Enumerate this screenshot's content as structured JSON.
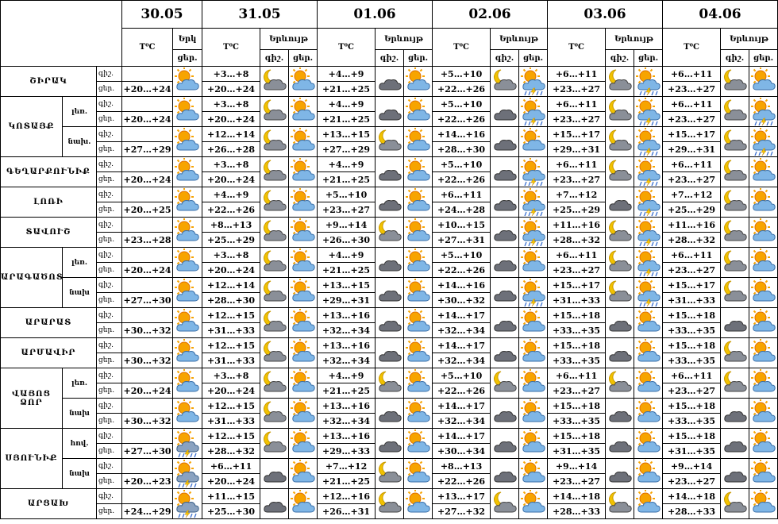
{
  "header": {
    "dates": [
      "30.05",
      "31.05",
      "01.06",
      "02.06",
      "03.06",
      "04.06"
    ],
    "temp_label": "T⁰C",
    "phenomenon_first": "Երկ",
    "phenomenon": "Երևույթ",
    "night": "գիշ.",
    "day": "ցեր."
  },
  "regions": [
    {
      "name": "ՇԻՐԱԿ",
      "parts": [
        {
          "night": [
            "+3…+8",
            "+4…+9",
            "+5…+10",
            "+6…+11",
            "+6…+11"
          ],
          "day": [
            "+20…+24",
            "+20…+24",
            "+21…+25",
            "+22…+26",
            "+23…+27",
            "+23…+27"
          ]
        }
      ]
    },
    {
      "name": "ԿՈՏԱՅՔ",
      "parts": [
        {
          "sub": "լեռ.",
          "night": [
            "+3…+8",
            "+4…+9",
            "+5…+10",
            "+6…+11",
            "+6…+11"
          ],
          "day": [
            "+20…+24",
            "+20…+24",
            "+21…+25",
            "+22…+26",
            "+23…+27",
            "+23…+27"
          ]
        },
        {
          "sub": "նախ.",
          "night": [
            "+12…+14",
            "+13…+15",
            "+14…+16",
            "+15…+17",
            "+15…+17"
          ],
          "day": [
            "+27…+29",
            "+26…+28",
            "+27…+29",
            "+28…+30",
            "+29…+31",
            "+29…+31"
          ]
        }
      ]
    },
    {
      "name": "ԳԵՂԱՐՔՈՒՆԻՔ",
      "parts": [
        {
          "night": [
            "+3…+8",
            "+4…+9",
            "+5…+10",
            "+6…+11",
            "+6…+11"
          ],
          "day": [
            "+20…+24",
            "+20…+24",
            "+21…+25",
            "+22…+26",
            "+23…+27",
            "+23…+27"
          ]
        }
      ]
    },
    {
      "name": "ԼՈՌԻ",
      "parts": [
        {
          "night": [
            "+4…+9",
            "+5…+10",
            "+6…+11",
            "+7…+12",
            "+7…+12"
          ],
          "day": [
            "+20…+25",
            "+22…+26",
            "+23…+27",
            "+24…+28",
            "+25…+29",
            "+25…+29"
          ]
        }
      ]
    },
    {
      "name": "ՏԱՎՈՒՇ",
      "parts": [
        {
          "night": [
            "+8…+13",
            "+9…+14",
            "+10…+15",
            "+11…+16",
            "+11…+16"
          ],
          "day": [
            "+23…+28",
            "+25…+29",
            "+26…+30",
            "+27…+31",
            "+28…+32",
            "+28…+32"
          ]
        }
      ]
    },
    {
      "name": "ԱՐԱԳԱԾՈՏՆ",
      "parts": [
        {
          "sub": "լեռ.",
          "night": [
            "+3…+8",
            "+4…+9",
            "+5…+10",
            "+6…+11",
            "+6…+11"
          ],
          "day": [
            "+20…+24",
            "+20…+24",
            "+21…+25",
            "+22…+26",
            "+23…+27",
            "+23…+27"
          ]
        },
        {
          "sub": "նախ",
          "night": [
            "+12…+14",
            "+13…+15",
            "+14…+16",
            "+15…+17",
            "+15…+17"
          ],
          "day": [
            "+27…+30",
            "+28…+30",
            "+29…+31",
            "+30…+32",
            "+31…+33",
            "+31…+33"
          ]
        }
      ]
    },
    {
      "name": "ԱՐԱՐԱՏ",
      "parts": [
        {
          "night": [
            "+12…+15",
            "+13…+16",
            "+14…+17",
            "+15…+18",
            "+15…+18"
          ],
          "day": [
            "+30…+32",
            "+31…+33",
            "+32…+34",
            "+32…+34",
            "+33…+35",
            "+33…+35"
          ]
        }
      ]
    },
    {
      "name": "ԱՐՄԱՎԻՐ",
      "parts": [
        {
          "night": [
            "+12…+15",
            "+13…+16",
            "+14…+17",
            "+15…+18",
            "+15…+18"
          ],
          "day": [
            "+30…+32",
            "+31…+33",
            "+32…+34",
            "+32…+34",
            "+33…+35",
            "+33…+35"
          ]
        }
      ]
    },
    {
      "name": "ՎԱՅՈՑ ՁՈՐ",
      "parts": [
        {
          "sub": "լեռ.",
          "night": [
            "+3…+8",
            "+4…+9",
            "+5…+10",
            "+6…+11",
            "+6…+11"
          ],
          "day": [
            "+20…+24",
            "+20…+24",
            "+21…+25",
            "+22…+26",
            "+23…+27",
            "+23…+27"
          ]
        },
        {
          "sub": "նախ",
          "night": [
            "+12…+15",
            "+13…+16",
            "+14…+17",
            "+15…+18",
            "+15…+18"
          ],
          "day": [
            "+30…+32",
            "+31…+33",
            "+32…+34",
            "+32…+34",
            "+33…+35",
            "+33…+35"
          ]
        }
      ]
    },
    {
      "name": "ՍՅՈՒՆԻՔ",
      "parts": [
        {
          "sub": "հով.",
          "night": [
            "+12…+15",
            "+13…+16",
            "+14…+17",
            "+15…+18",
            "+15…+18"
          ],
          "day": [
            "+27…+30",
            "+28…+32",
            "+29…+33",
            "+30…+34",
            "+31…+35",
            "+31…+35"
          ]
        },
        {
          "sub": "նախ",
          "night": [
            "+6…+11",
            "+7…+12",
            "+8…+13",
            "+9…+14",
            "+9…+14"
          ],
          "day": [
            "+20…+23",
            "+20…+24",
            "+21…+25",
            "+22…+26",
            "+23…+27",
            "+23…+27"
          ]
        }
      ]
    },
    {
      "name": "ԱՐՑԱԽ",
      "parts": [
        {
          "night": [
            "+11…+15",
            "+12…+16",
            "+13…+17",
            "+14…+18",
            "+14…+18"
          ],
          "day": [
            "+24…+29",
            "+25…+30",
            "+26…+31",
            "+27…+32",
            "+28…+33",
            "+28…+33"
          ]
        }
      ]
    }
  ]
}
